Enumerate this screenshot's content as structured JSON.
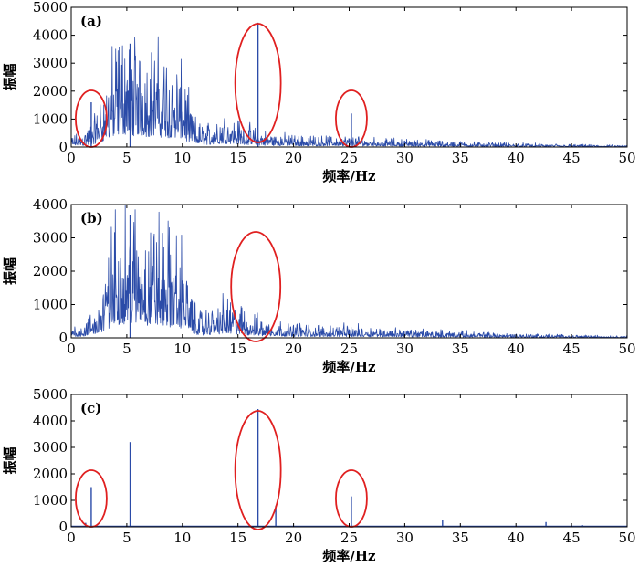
{
  "chart_data": [
    {
      "type": "line",
      "panel_label": "(a)",
      "xlabel": "频率/Hz",
      "ylabel": "振幅",
      "xlim": [
        0,
        50
      ],
      "ylim": [
        0,
        5000
      ],
      "xticks": [
        0,
        5,
        10,
        15,
        20,
        25,
        30,
        35,
        40,
        45,
        50
      ],
      "yticks": [
        0,
        1000,
        2000,
        3000,
        4000,
        5000
      ],
      "envelope": {
        "x": [
          0,
          1,
          2,
          3,
          4,
          5,
          6,
          7,
          8,
          9,
          10,
          11,
          12,
          13,
          14,
          15,
          16,
          17,
          18,
          19,
          20,
          22,
          25,
          28,
          30,
          35,
          40,
          45,
          50
        ],
        "y": [
          250,
          350,
          700,
          1400,
          2500,
          2800,
          2500,
          2400,
          2300,
          2100,
          1800,
          700,
          500,
          700,
          800,
          650,
          500,
          400,
          350,
          300,
          280,
          250,
          250,
          200,
          180,
          130,
          90,
          60,
          40
        ]
      },
      "peaks": [
        {
          "x": 1.8,
          "y": 1600
        },
        {
          "x": 5.3,
          "y": 3700
        },
        {
          "x": 16.8,
          "y": 4450
        },
        {
          "x": 25.2,
          "y": 1200
        }
      ],
      "highlight_circles_x": [
        1.8,
        16.8,
        25.2
      ],
      "grid": false
    },
    {
      "type": "line",
      "panel_label": "(b)",
      "xlabel": "频率/Hz",
      "ylabel": "振幅",
      "xlim": [
        0,
        50
      ],
      "ylim": [
        0,
        4000
      ],
      "xticks": [
        0,
        5,
        10,
        15,
        20,
        25,
        30,
        35,
        40,
        45,
        50
      ],
      "yticks": [
        0,
        1000,
        2000,
        3000,
        4000
      ],
      "envelope": {
        "x": [
          0,
          1,
          2,
          3,
          4,
          5,
          6,
          7,
          8,
          9,
          10,
          11,
          12,
          13,
          14,
          15,
          16,
          17,
          18,
          19,
          20,
          22,
          25,
          28,
          30,
          35,
          40,
          45,
          50
        ],
        "y": [
          250,
          300,
          500,
          1300,
          2500,
          2800,
          2500,
          2400,
          2300,
          2100,
          1800,
          700,
          500,
          700,
          800,
          650,
          500,
          400,
          350,
          300,
          280,
          250,
          250,
          200,
          180,
          130,
          90,
          60,
          40
        ]
      },
      "peaks": [
        {
          "x": 5.3,
          "y": 3700
        }
      ],
      "highlight_circles_x": [
        16.6
      ],
      "grid": false
    },
    {
      "type": "bar",
      "panel_label": "(c)",
      "xlabel": "频率/Hz",
      "ylabel": "振幅",
      "xlim": [
        0,
        50
      ],
      "ylim": [
        0,
        5000
      ],
      "xticks": [
        0,
        5,
        10,
        15,
        20,
        25,
        30,
        35,
        40,
        45,
        50
      ],
      "yticks": [
        0,
        1000,
        2000,
        3000,
        4000,
        5000
      ],
      "x": [
        1.3,
        1.8,
        5.3,
        16.8,
        18.4,
        25.2,
        33.4,
        42.7,
        46.0
      ],
      "values": [
        150,
        1500,
        3200,
        4450,
        800,
        1150,
        250,
        180,
        60
      ],
      "highlight_circles_x": [
        1.8,
        16.8,
        25.2
      ],
      "grid": false
    }
  ]
}
